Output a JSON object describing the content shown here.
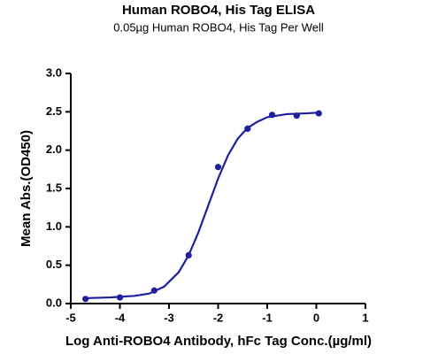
{
  "chart_data": {
    "type": "scatter",
    "title": "Human ROBO4, His Tag ELISA",
    "subtitle": "0.05µg Human ROBO4, His Tag Per Well",
    "xlabel": "Log Anti-ROBO4 Antibody, hFc Tag Conc.(µg/ml)",
    "ylabel": "Mean Abs.(OD450)",
    "xlim": [
      -5,
      1
    ],
    "ylim": [
      0,
      3
    ],
    "xticks": [
      -5,
      -4,
      -3,
      -2,
      -1,
      0,
      1
    ],
    "yticks": [
      {
        "value": 0,
        "label": "0.0"
      },
      0.5,
      {
        "value": 1,
        "label": "1.0"
      },
      1.5,
      {
        "value": 2,
        "label": "2.0"
      },
      2.5,
      {
        "value": 3,
        "label": "3.0"
      }
    ],
    "series": [
      {
        "type": "scatter",
        "color": "#1f1f9e",
        "x": [
          -4.7,
          -4.0,
          -3.3,
          -2.6,
          -2.0,
          -1.4,
          -0.9,
          -0.4,
          0.05
        ],
        "values": [
          0.06,
          0.08,
          0.17,
          0.63,
          1.78,
          2.28,
          2.46,
          2.45,
          2.48
        ]
      },
      {
        "type": "line",
        "color": "#1f1f9e",
        "x": [
          -4.7,
          -4.2,
          -3.7,
          -3.4,
          -3.1,
          -2.8,
          -2.6,
          -2.4,
          -2.2,
          -2.0,
          -1.8,
          -1.6,
          -1.4,
          -1.2,
          -1.0,
          -0.6,
          -0.2,
          0.05
        ],
        "values": [
          0.07,
          0.08,
          0.1,
          0.13,
          0.22,
          0.41,
          0.63,
          0.93,
          1.28,
          1.63,
          1.93,
          2.15,
          2.29,
          2.37,
          2.43,
          2.47,
          2.48,
          2.49
        ]
      }
    ]
  }
}
